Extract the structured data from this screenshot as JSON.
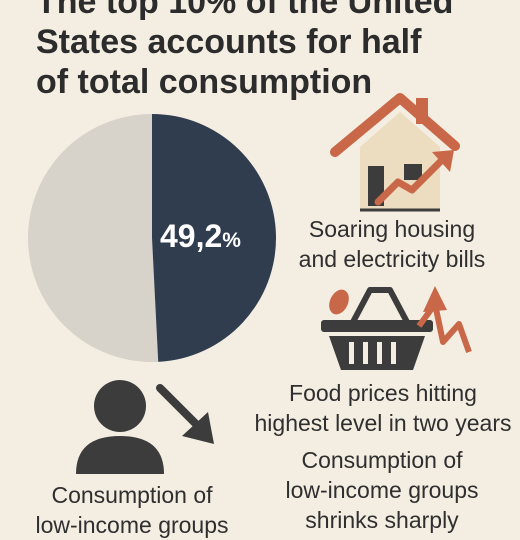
{
  "title": {
    "line1": "The top 10% of the United",
    "line2": "States accounts for half",
    "line3": "of total consumption"
  },
  "pie": {
    "value_text": "49,2",
    "unit": "%",
    "value": 49.2,
    "colors": {
      "share": "#2f3d4f",
      "rest": "#d7d2ca"
    }
  },
  "captions": {
    "housing": {
      "line1": "Soaring housing",
      "line2": "and electricity bills"
    },
    "food": {
      "line1": "Food prices hitting",
      "line2": "highest level in two years"
    },
    "consumption": {
      "line1": "Consumption of",
      "line2": "low-income groups",
      "line3": "shrinks sharply"
    },
    "low_income": {
      "line1": "Consumption of",
      "line2": "low-income groups"
    }
  },
  "icons": [
    "house-rising-arrow-icon",
    "shopping-basket-icon",
    "person-icon",
    "down-arrow-icon"
  ],
  "colors": {
    "accent": "#c96848",
    "dark": "#3c3c3c",
    "background": "#f4ede2"
  }
}
